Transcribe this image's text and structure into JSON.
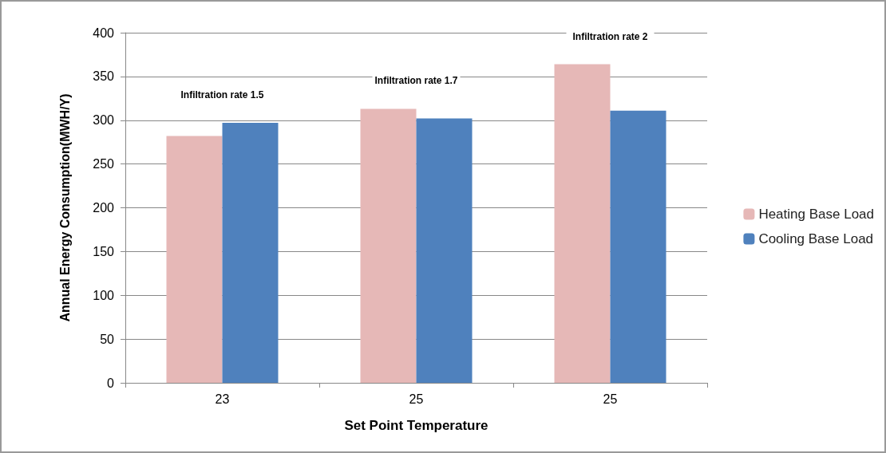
{
  "chart_data": {
    "type": "bar",
    "xlabel": "Set Point Temperature",
    "ylabel": "Annual Energy Consumption(MWH/Y)",
    "categories": [
      "23",
      "25",
      "25"
    ],
    "series": [
      {
        "name": "Heating Base Load",
        "color": "#e6b8b7",
        "values": [
          282,
          313,
          364
        ]
      },
      {
        "name": "Cooling Base Load",
        "color": "#4f81bd",
        "values": [
          297,
          302,
          311
        ]
      }
    ],
    "ylim": [
      0,
      400
    ],
    "yticks": [
      0,
      50,
      100,
      150,
      200,
      250,
      300,
      350,
      400
    ],
    "grid": "y",
    "legend": "right",
    "annotations": [
      "Infiltration rate 1.5",
      "Infiltration rate 1.7",
      "Infiltration rate 2"
    ]
  }
}
